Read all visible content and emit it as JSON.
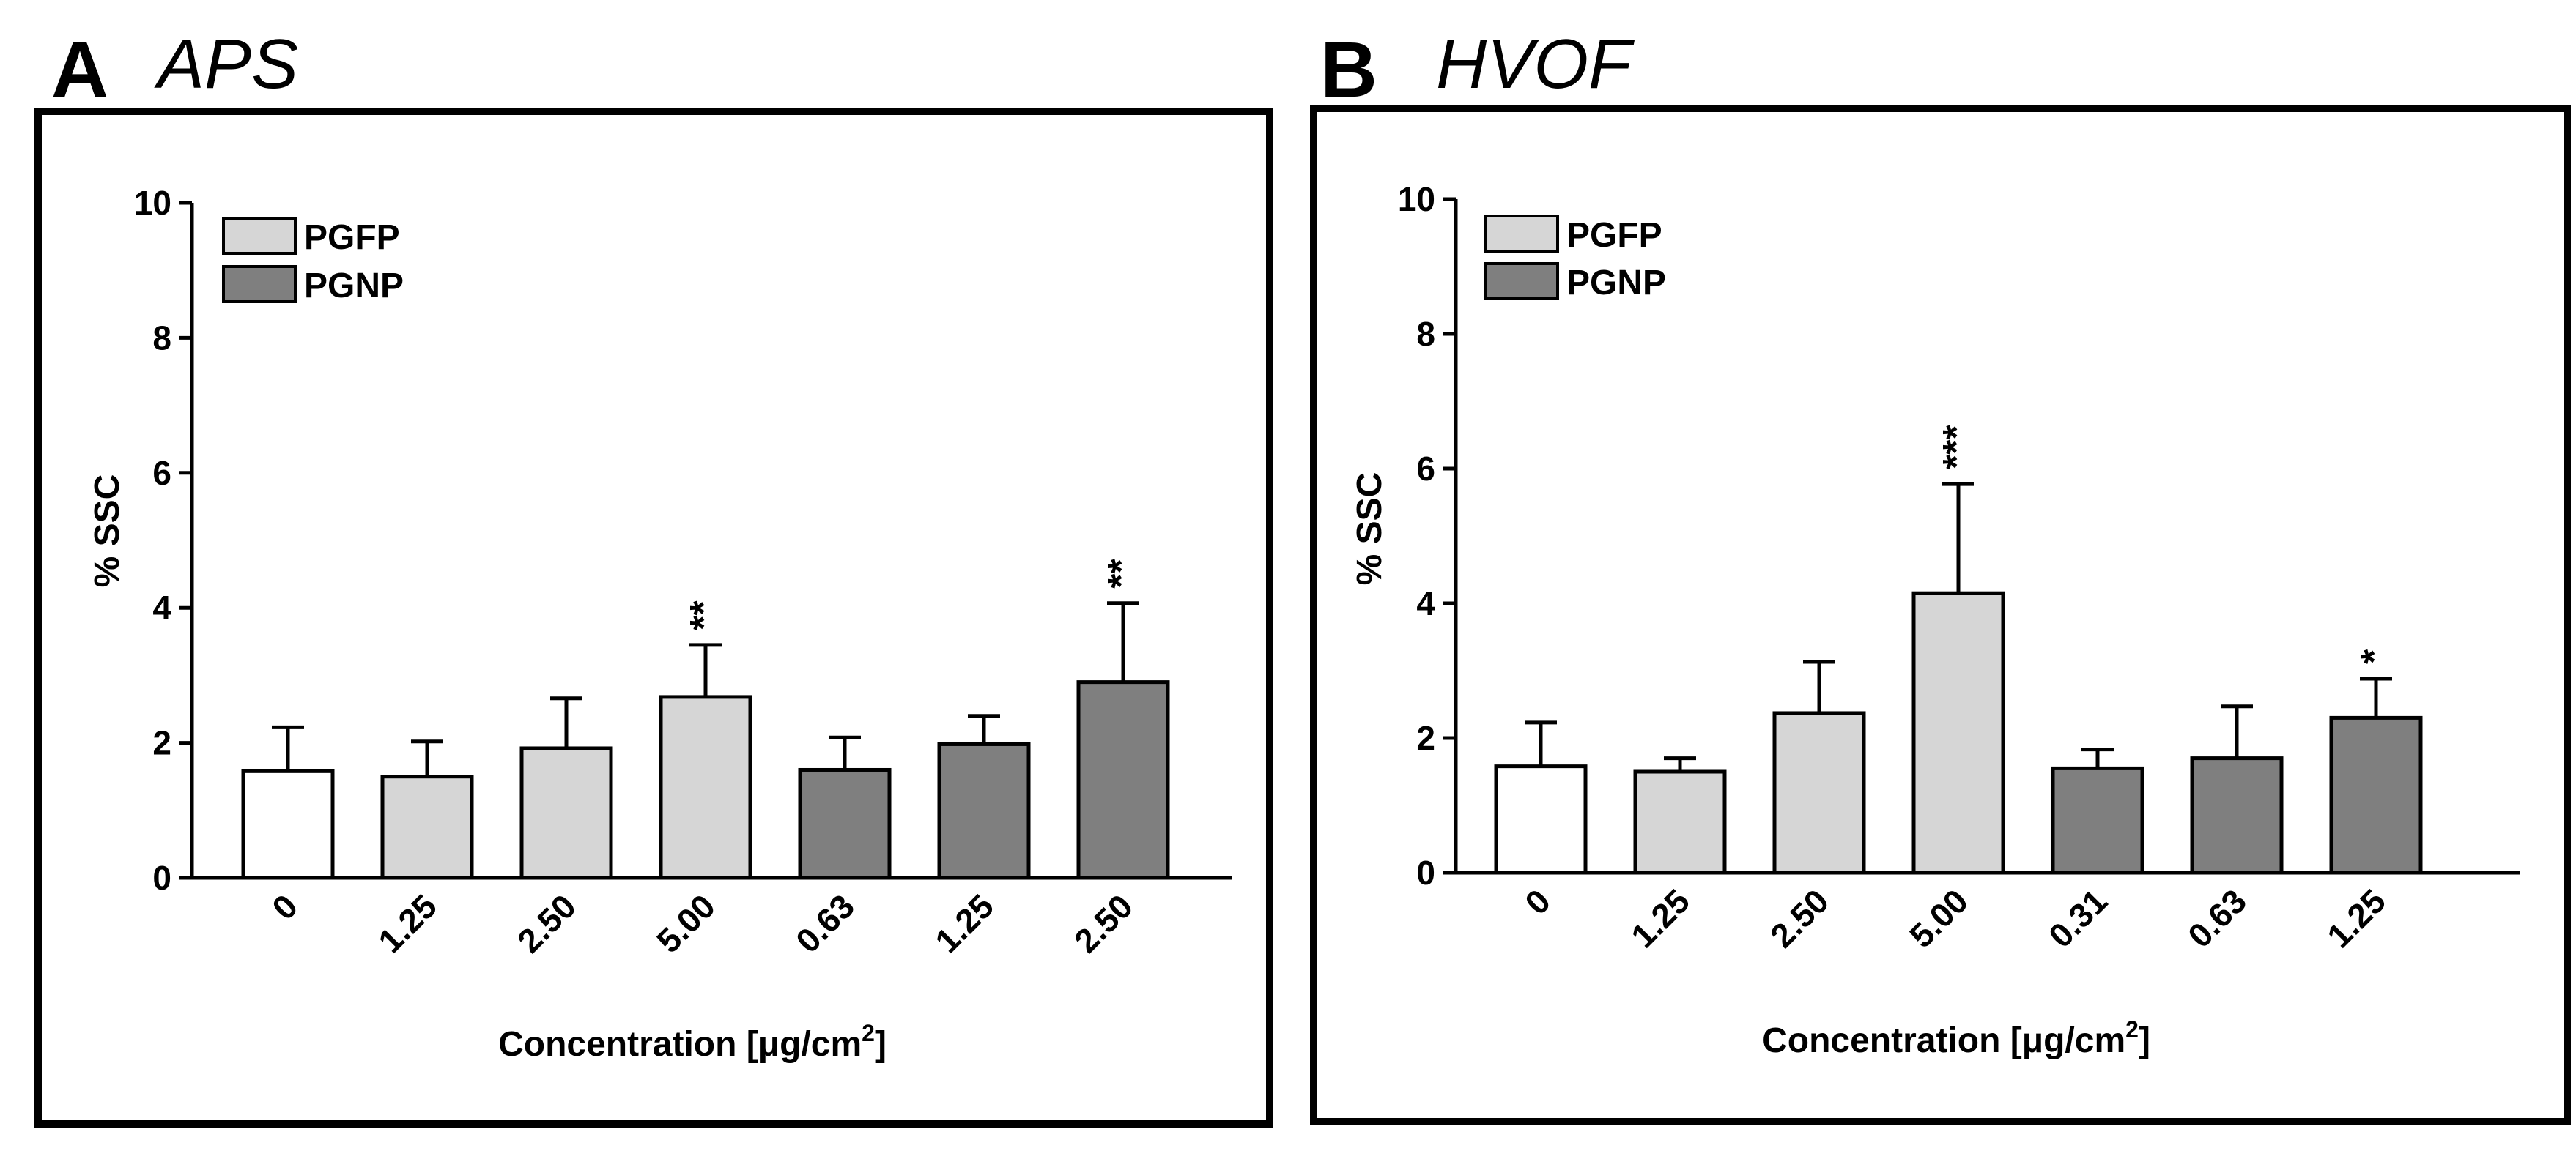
{
  "colors": {
    "control": "#ffffff",
    "PGFP": "#d6d6d6",
    "PGNP": "#7f7f7f",
    "stroke": "#000000"
  },
  "chart_data": [
    {
      "type": "bar",
      "panel_letter": "A",
      "title": "APS",
      "ylabel": "% SSC",
      "xlabel": "Concentration [μg/cm²]",
      "xlabel_main": "Concentration [",
      "xlabel_mu": "μ",
      "xlabel_unit": "g/cm",
      "xlabel_sup": "2",
      "xlabel_close": "]",
      "ylim": [
        0,
        10
      ],
      "yticks": [
        "0",
        "2",
        "4",
        "6",
        "8",
        "10"
      ],
      "legend": [
        {
          "label": "PGFP",
          "group": "PGFP"
        },
        {
          "label": "PGNP",
          "group": "PGNP"
        }
      ],
      "legend_position": "top-left",
      "categories": [
        "0",
        "1.25",
        "2.50",
        "5.00",
        "0.63",
        "1.25",
        "2.50"
      ],
      "groups": [
        "control",
        "PGFP",
        "PGFP",
        "PGFP",
        "PGNP",
        "PGNP",
        "PGNP"
      ],
      "values": [
        1.58,
        1.5,
        1.92,
        2.68,
        1.6,
        1.98,
        2.9
      ],
      "errors": [
        0.65,
        0.52,
        0.74,
        0.77,
        0.48,
        0.42,
        1.17
      ],
      "significance": [
        "",
        "",
        "",
        "**",
        "",
        "",
        "**"
      ]
    },
    {
      "type": "bar",
      "panel_letter": "B",
      "title": "HVOF",
      "ylabel": "% SSC",
      "xlabel": "Concentration [μg/cm²]",
      "xlabel_main": "Concentration [",
      "xlabel_mu": "μ",
      "xlabel_unit": "g/cm",
      "xlabel_sup": "2",
      "xlabel_close": "]",
      "ylim": [
        0,
        10
      ],
      "yticks": [
        "0",
        "2",
        "4",
        "6",
        "8",
        "10"
      ],
      "legend": [
        {
          "label": "PGFP",
          "group": "PGFP"
        },
        {
          "label": "PGNP",
          "group": "PGNP"
        }
      ],
      "legend_position": "top-left",
      "categories": [
        "0",
        "1.25",
        "2.50",
        "5.00",
        "0.31",
        "0.63",
        "1.25"
      ],
      "groups": [
        "control",
        "PGFP",
        "PGFP",
        "PGFP",
        "PGNP",
        "PGNP",
        "PGNP"
      ],
      "values": [
        1.58,
        1.5,
        2.37,
        4.15,
        1.55,
        1.7,
        2.3
      ],
      "errors": [
        0.65,
        0.2,
        0.76,
        1.62,
        0.28,
        0.77,
        0.58
      ],
      "significance": [
        "",
        "",
        "",
        "***",
        "",
        "",
        "*"
      ]
    }
  ]
}
